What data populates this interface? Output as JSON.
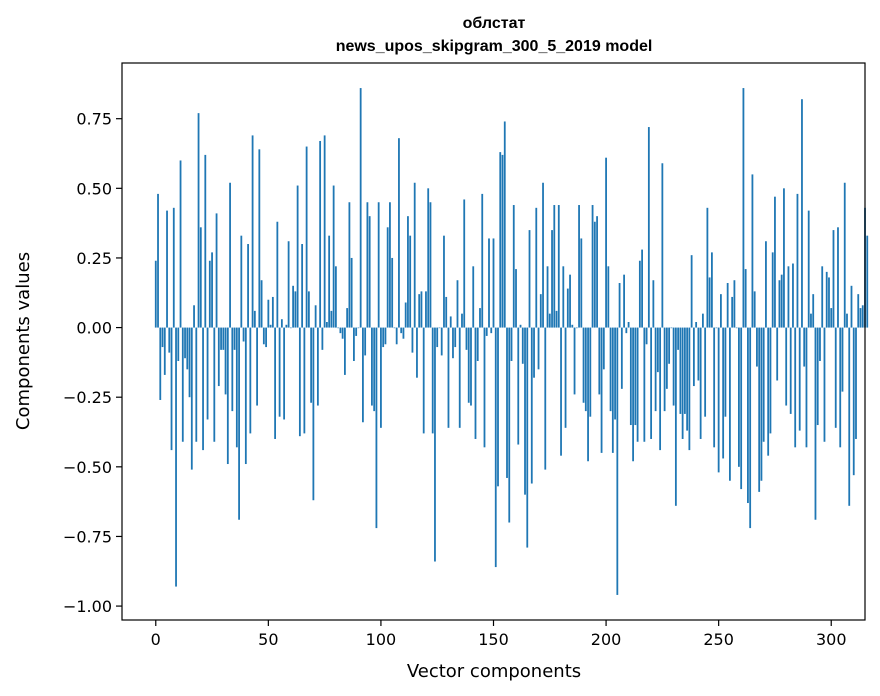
{
  "chart_data": {
    "type": "bar",
    "title": "облстат",
    "subtitle": "news_upos_skipgram_300_5_2019 model",
    "xlabel": "Vector components",
    "ylabel": "Components values",
    "xlim": [
      -15,
      315
    ],
    "ylim": [
      -1.05,
      0.95
    ],
    "xticks": [
      0,
      50,
      100,
      150,
      200,
      250,
      300
    ],
    "yticks": [
      0.75,
      0.5,
      0.25,
      0.0,
      -0.25,
      -0.5,
      -0.75,
      -1.0
    ],
    "ytick_labels": [
      "0.75",
      "0.50",
      "0.25",
      "0.00",
      "−0.25",
      "−0.50",
      "−0.75",
      "−1.00"
    ],
    "grid": false,
    "bar_color": "#1f77b4",
    "values": [
      0.24,
      0.48,
      -0.26,
      -0.07,
      -0.17,
      0.42,
      -0.09,
      -0.44,
      0.43,
      -0.93,
      -0.12,
      0.6,
      -0.41,
      -0.11,
      -0.15,
      -0.25,
      -0.51,
      0.08,
      -0.41,
      0.77,
      0.36,
      -0.44,
      0.62,
      -0.33,
      0.24,
      0.27,
      -0.41,
      0.41,
      -0.21,
      -0.08,
      -0.08,
      -0.24,
      -0.49,
      0.52,
      -0.3,
      -0.08,
      -0.43,
      -0.69,
      0.33,
      -0.05,
      -0.49,
      0.3,
      -0.38,
      0.69,
      0.06,
      -0.28,
      0.64,
      0.17,
      -0.06,
      -0.07,
      0.1,
      0.01,
      0.11,
      -0.4,
      0.38,
      -0.32,
      0.03,
      -0.33,
      0.01,
      0.31,
      0.0,
      0.15,
      0.13,
      0.51,
      -0.39,
      0.3,
      -0.38,
      0.65,
      0.13,
      -0.27,
      -0.62,
      0.08,
      -0.28,
      0.67,
      -0.08,
      0.69,
      0.02,
      0.33,
      0.06,
      0.51,
      0.22,
      0.0,
      -0.02,
      -0.04,
      -0.17,
      0.07,
      0.45,
      0.25,
      -0.12,
      -0.03,
      0.0,
      0.86,
      -0.34,
      -0.1,
      0.45,
      0.4,
      -0.28,
      -0.3,
      -0.72,
      0.45,
      -0.36,
      -0.07,
      -0.06,
      0.36,
      0.45,
      0.25,
      0.0,
      -0.06,
      0.68,
      -0.02,
      -0.04,
      0.09,
      0.4,
      0.33,
      -0.09,
      0.52,
      -0.18,
      0.12,
      0.13,
      -0.38,
      0.13,
      0.5,
      0.45,
      -0.38,
      -0.84,
      -0.07,
      0.0,
      -0.1,
      0.33,
      0.11,
      -0.36,
      0.04,
      -0.11,
      -0.07,
      0.17,
      -0.36,
      0.05,
      0.46,
      -0.08,
      -0.27,
      -0.28,
      0.22,
      -0.4,
      -0.12,
      0.07,
      0.48,
      -0.43,
      -0.03,
      0.32,
      -0.02,
      0.32,
      -0.86,
      -0.57,
      0.63,
      0.62,
      0.74,
      -0.54,
      -0.7,
      -0.12,
      0.44,
      0.21,
      -0.42,
      0.01,
      -0.13,
      -0.6,
      -0.79,
      0.35,
      -0.56,
      -0.18,
      0.43,
      -0.15,
      0.12,
      0.52,
      -0.51,
      0.22,
      0.05,
      0.35,
      0.44,
      0.06,
      0.44,
      -0.46,
      0.22,
      -0.36,
      0.14,
      0.19,
      0.01,
      -0.24,
      0.0,
      0.44,
      0.32,
      -0.27,
      -0.3,
      -0.48,
      -0.32,
      0.44,
      0.38,
      0.4,
      -0.24,
      -0.45,
      -0.15,
      0.61,
      0.22,
      -0.3,
      -0.45,
      -0.33,
      -0.96,
      0.16,
      -0.22,
      0.19,
      -0.02,
      0.02,
      -0.35,
      -0.48,
      -0.35,
      -0.41,
      0.24,
      0.28,
      -0.41,
      -0.06,
      0.72,
      -0.4,
      0.17,
      -0.3,
      -0.16,
      -0.44,
      0.59,
      -0.3,
      -0.22,
      -0.13,
      0.0,
      -0.28,
      -0.64,
      -0.08,
      -0.31,
      -0.4,
      -0.31,
      -0.37,
      -0.44,
      0.26,
      -0.21,
      0.02,
      -0.19,
      -0.4,
      0.05,
      -0.32,
      0.43,
      0.18,
      0.27,
      -0.43,
      0.0,
      -0.52,
      0.12,
      -0.47,
      -0.32,
      0.16,
      -0.55,
      0.11,
      0.17,
      0.0,
      -0.5,
      -0.58,
      0.86,
      0.21,
      -0.63,
      -0.72,
      0.55,
      0.13,
      -0.14,
      -0.59,
      -0.55,
      -0.41,
      0.31,
      -0.46,
      -0.38,
      0.27,
      0.47,
      -0.19,
      0.17,
      0.19,
      0.5,
      -0.28,
      0.22,
      -0.31,
      0.23,
      -0.43,
      0.48,
      -0.37,
      0.82,
      -0.14,
      -0.43,
      0.42,
      0.05,
      0.12,
      -0.69,
      -0.35,
      -0.12,
      0.22,
      -0.41,
      0.2,
      0.18,
      0.07,
      0.35,
      -0.36,
      0.36,
      -0.43,
      -0.23,
      0.52,
      0.05,
      -0.64,
      0.15,
      -0.53,
      -0.4,
      0.12,
      0.07,
      0.08,
      0.43,
      0.33
    ]
  }
}
